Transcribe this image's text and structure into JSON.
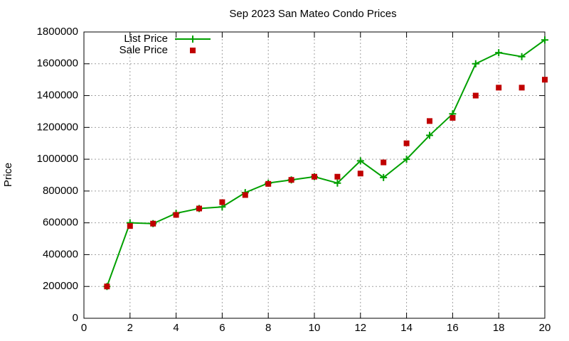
{
  "chart_data": {
    "type": "line",
    "title": "Sep 2023 San Mateo Condo Prices",
    "y_label": "Price",
    "x": [
      1,
      2,
      3,
      4,
      5,
      6,
      7,
      8,
      9,
      10,
      11,
      12,
      13,
      14,
      15,
      16,
      17,
      18,
      19,
      20
    ],
    "series": [
      {
        "name": "List Price",
        "color": "#00a000",
        "style": "linespoints",
        "values": [
          200000,
          600000,
          595000,
          660000,
          690000,
          700000,
          790000,
          850000,
          870000,
          890000,
          850000,
          990000,
          885000,
          1000000,
          1150000,
          1285000,
          1600000,
          1670000,
          1645000,
          1750000
        ]
      },
      {
        "name": "Sale Price",
        "color": "#c00000",
        "style": "points",
        "values": [
          200000,
          580000,
          595000,
          650000,
          690000,
          730000,
          775000,
          845000,
          870000,
          890000,
          890000,
          910000,
          980000,
          1100000,
          1240000,
          1260000,
          1400000,
          1450000,
          1450000,
          1500000
        ]
      }
    ],
    "xlim": [
      0,
      20
    ],
    "ylim": [
      0,
      1800000
    ],
    "xticks": [
      0,
      2,
      4,
      6,
      8,
      10,
      12,
      14,
      16,
      18,
      20
    ],
    "yticks": [
      0,
      200000,
      400000,
      600000,
      800000,
      1000000,
      1200000,
      1400000,
      1600000,
      1800000
    ],
    "grid": true,
    "legend": "top-left"
  }
}
